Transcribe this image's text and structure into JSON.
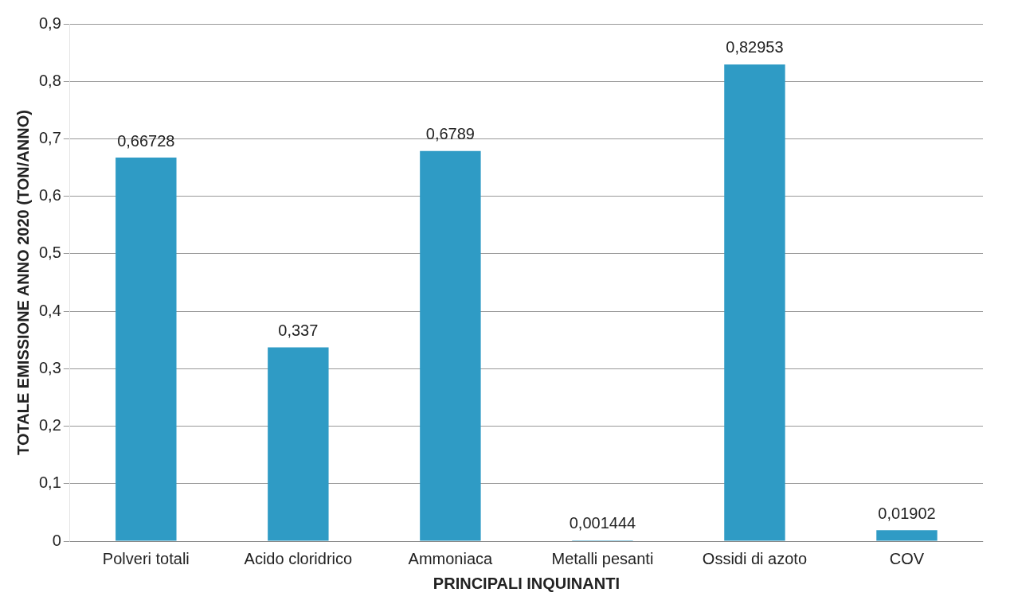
{
  "chart_data": {
    "type": "bar",
    "xlabel": "PRINCIPALI INQUINANTI",
    "ylabel": "TOTALE EMISSIONE ANNO 2020 (TON/ANNO)",
    "categories": [
      "Polveri totali",
      "Acido cloridrico",
      "Ammoniaca",
      "Metalli pesanti",
      "Ossidi di azoto",
      "COV"
    ],
    "values": [
      0.66728,
      0.337,
      0.6789,
      0.001444,
      0.82953,
      0.01902
    ],
    "value_labels": [
      "0,66728",
      "0,337",
      "0,6789",
      "0,001444",
      "0,82953",
      "0,01902"
    ],
    "color": "#2f9bc5",
    "ylim": [
      0,
      0.9
    ],
    "yticks": [
      0,
      {
        "value": 0.1,
        "label": "0,1"
      },
      {
        "value": 0.2,
        "label": "0,2"
      },
      {
        "value": 0.3,
        "label": "0,3"
      },
      {
        "value": 0.4,
        "label": "0,4"
      },
      {
        "value": 0.5,
        "label": "0,5"
      },
      {
        "value": 0.6,
        "label": "0,6"
      },
      {
        "value": 0.7,
        "label": "0,7"
      },
      {
        "value": 0.8,
        "label": "0,8"
      },
      {
        "value": 0.9,
        "label": "0,9"
      }
    ],
    "grid": "y",
    "legend": false
  }
}
